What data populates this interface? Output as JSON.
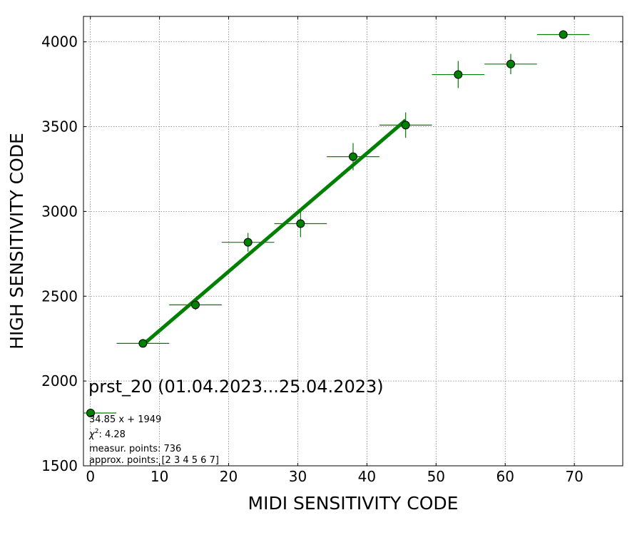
{
  "chart_data": {
    "type": "scatter",
    "title": "prst_20 (01.04.2023...25.04.2023)",
    "xlabel": "MIDI SENSITIVITY CODE",
    "ylabel": "HIGH SENSITIVITY CODE",
    "xlim": [
      -1,
      77
    ],
    "ylim": [
      1500,
      4150
    ],
    "xticks": [
      0,
      10,
      20,
      30,
      40,
      50,
      60,
      70
    ],
    "yticks": [
      1500,
      2000,
      2500,
      3000,
      3500,
      4000
    ],
    "grid": true,
    "legend_position": "lower-left",
    "colors": {
      "marker": "#008000",
      "marker_edge": "#000000",
      "fit_line": "#008000"
    },
    "series": [
      {
        "x": [
          7.6,
          15.2,
          22.8,
          30.4,
          38.0,
          45.6,
          53.2,
          60.8,
          68.4
        ],
        "y": [
          2222,
          2449,
          2818,
          2928,
          3323,
          3509,
          3807,
          3869,
          4043
        ],
        "x_err": [
          3.8,
          3.8,
          3.8,
          3.8,
          3.8,
          3.8,
          3.8,
          3.8,
          3.8
        ],
        "y_err": [
          15,
          30,
          55,
          80,
          80,
          75,
          80,
          60,
          25
        ]
      }
    ],
    "fit": {
      "slope": 34.85,
      "intercept": 1949,
      "x_range": [
        7.6,
        45.6
      ],
      "label": "34.85 x + 1949"
    },
    "annotations": {
      "chi2_symbol": "χ",
      "chi2_sup": "2",
      "chi2_value": ": 4.28",
      "measur_points": "measur. points: 736",
      "approx_points": "approx. points: [2 3 4 5 6 7]"
    }
  }
}
